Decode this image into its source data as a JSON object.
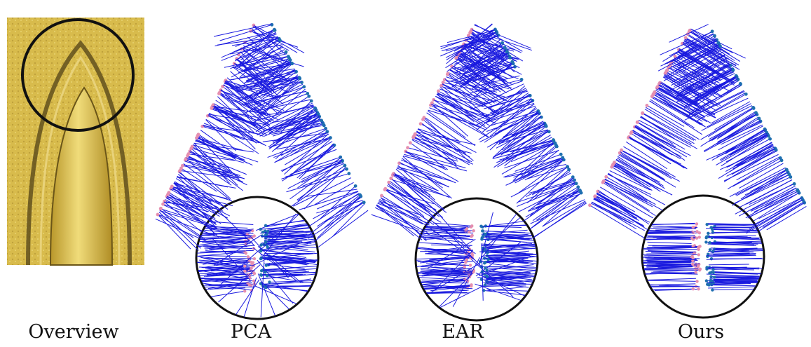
{
  "figure": {
    "labels": [
      "Overview",
      "PCA",
      "EAR",
      "Ours"
    ]
  }
}
